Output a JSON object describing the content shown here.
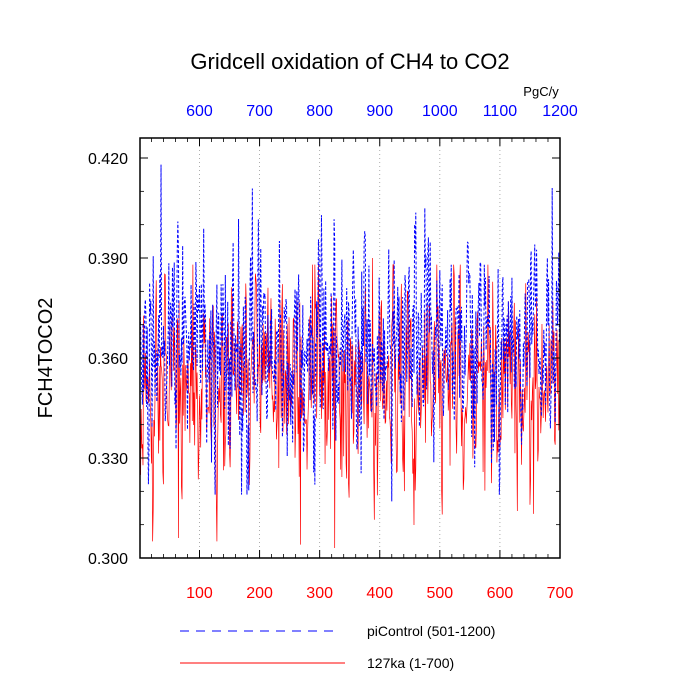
{
  "chart_data": {
    "type": "line",
    "title": "Gridcell oxidation of CH4 to CO2",
    "ylabel": "FCH4TOCO2",
    "units_label": "PgC/y",
    "ylim": [
      0.3,
      0.426
    ],
    "yticks": [
      0.3,
      0.33,
      0.36,
      0.39,
      0.42
    ],
    "ytick_labels": [
      "0.300",
      "0.330",
      "0.360",
      "0.390",
      "0.420"
    ],
    "x_bottom": {
      "range": [
        1,
        700
      ],
      "ticks": [
        100,
        200,
        300,
        400,
        500,
        600,
        700
      ],
      "tick_labels": [
        "100",
        "200",
        "300",
        "400",
        "500",
        "600",
        "700"
      ],
      "color": "#ff0000"
    },
    "x_top": {
      "range": [
        501,
        1200
      ],
      "ticks": [
        600,
        700,
        800,
        900,
        1000,
        1100,
        1200
      ],
      "tick_labels": [
        "600",
        "700",
        "800",
        "900",
        "1000",
        "1100",
        "1200"
      ],
      "color": "#0000ff"
    },
    "grid": "vertical-dotted",
    "series": [
      {
        "name": "piControl (501-1200)",
        "color": "#0000ff",
        "style": "dashed",
        "axis": "top",
        "years": [
          501,
          1200
        ],
        "mean": 0.365,
        "std": 0.015,
        "min": 0.317,
        "max": 0.418,
        "notable_peaks": [
          {
            "x": 536,
            "y": 0.418
          },
          {
            "x": 1187,
            "y": 0.411
          }
        ],
        "notable_troughs": [
          {
            "x": 920,
            "y": 0.317
          }
        ]
      },
      {
        "name": "127ka (1-700)",
        "color": "#ff0000",
        "style": "solid",
        "axis": "bottom",
        "years": [
          1,
          700
        ],
        "mean": 0.354,
        "std": 0.015,
        "min": 0.303,
        "max": 0.39,
        "notable_peaks": [
          {
            "x": 388,
            "y": 0.39
          },
          {
            "x": 89,
            "y": 0.388
          }
        ],
        "notable_troughs": [
          {
            "x": 268,
            "y": 0.304
          },
          {
            "x": 325,
            "y": 0.303
          },
          {
            "x": 65,
            "y": 0.306
          }
        ]
      }
    ]
  }
}
